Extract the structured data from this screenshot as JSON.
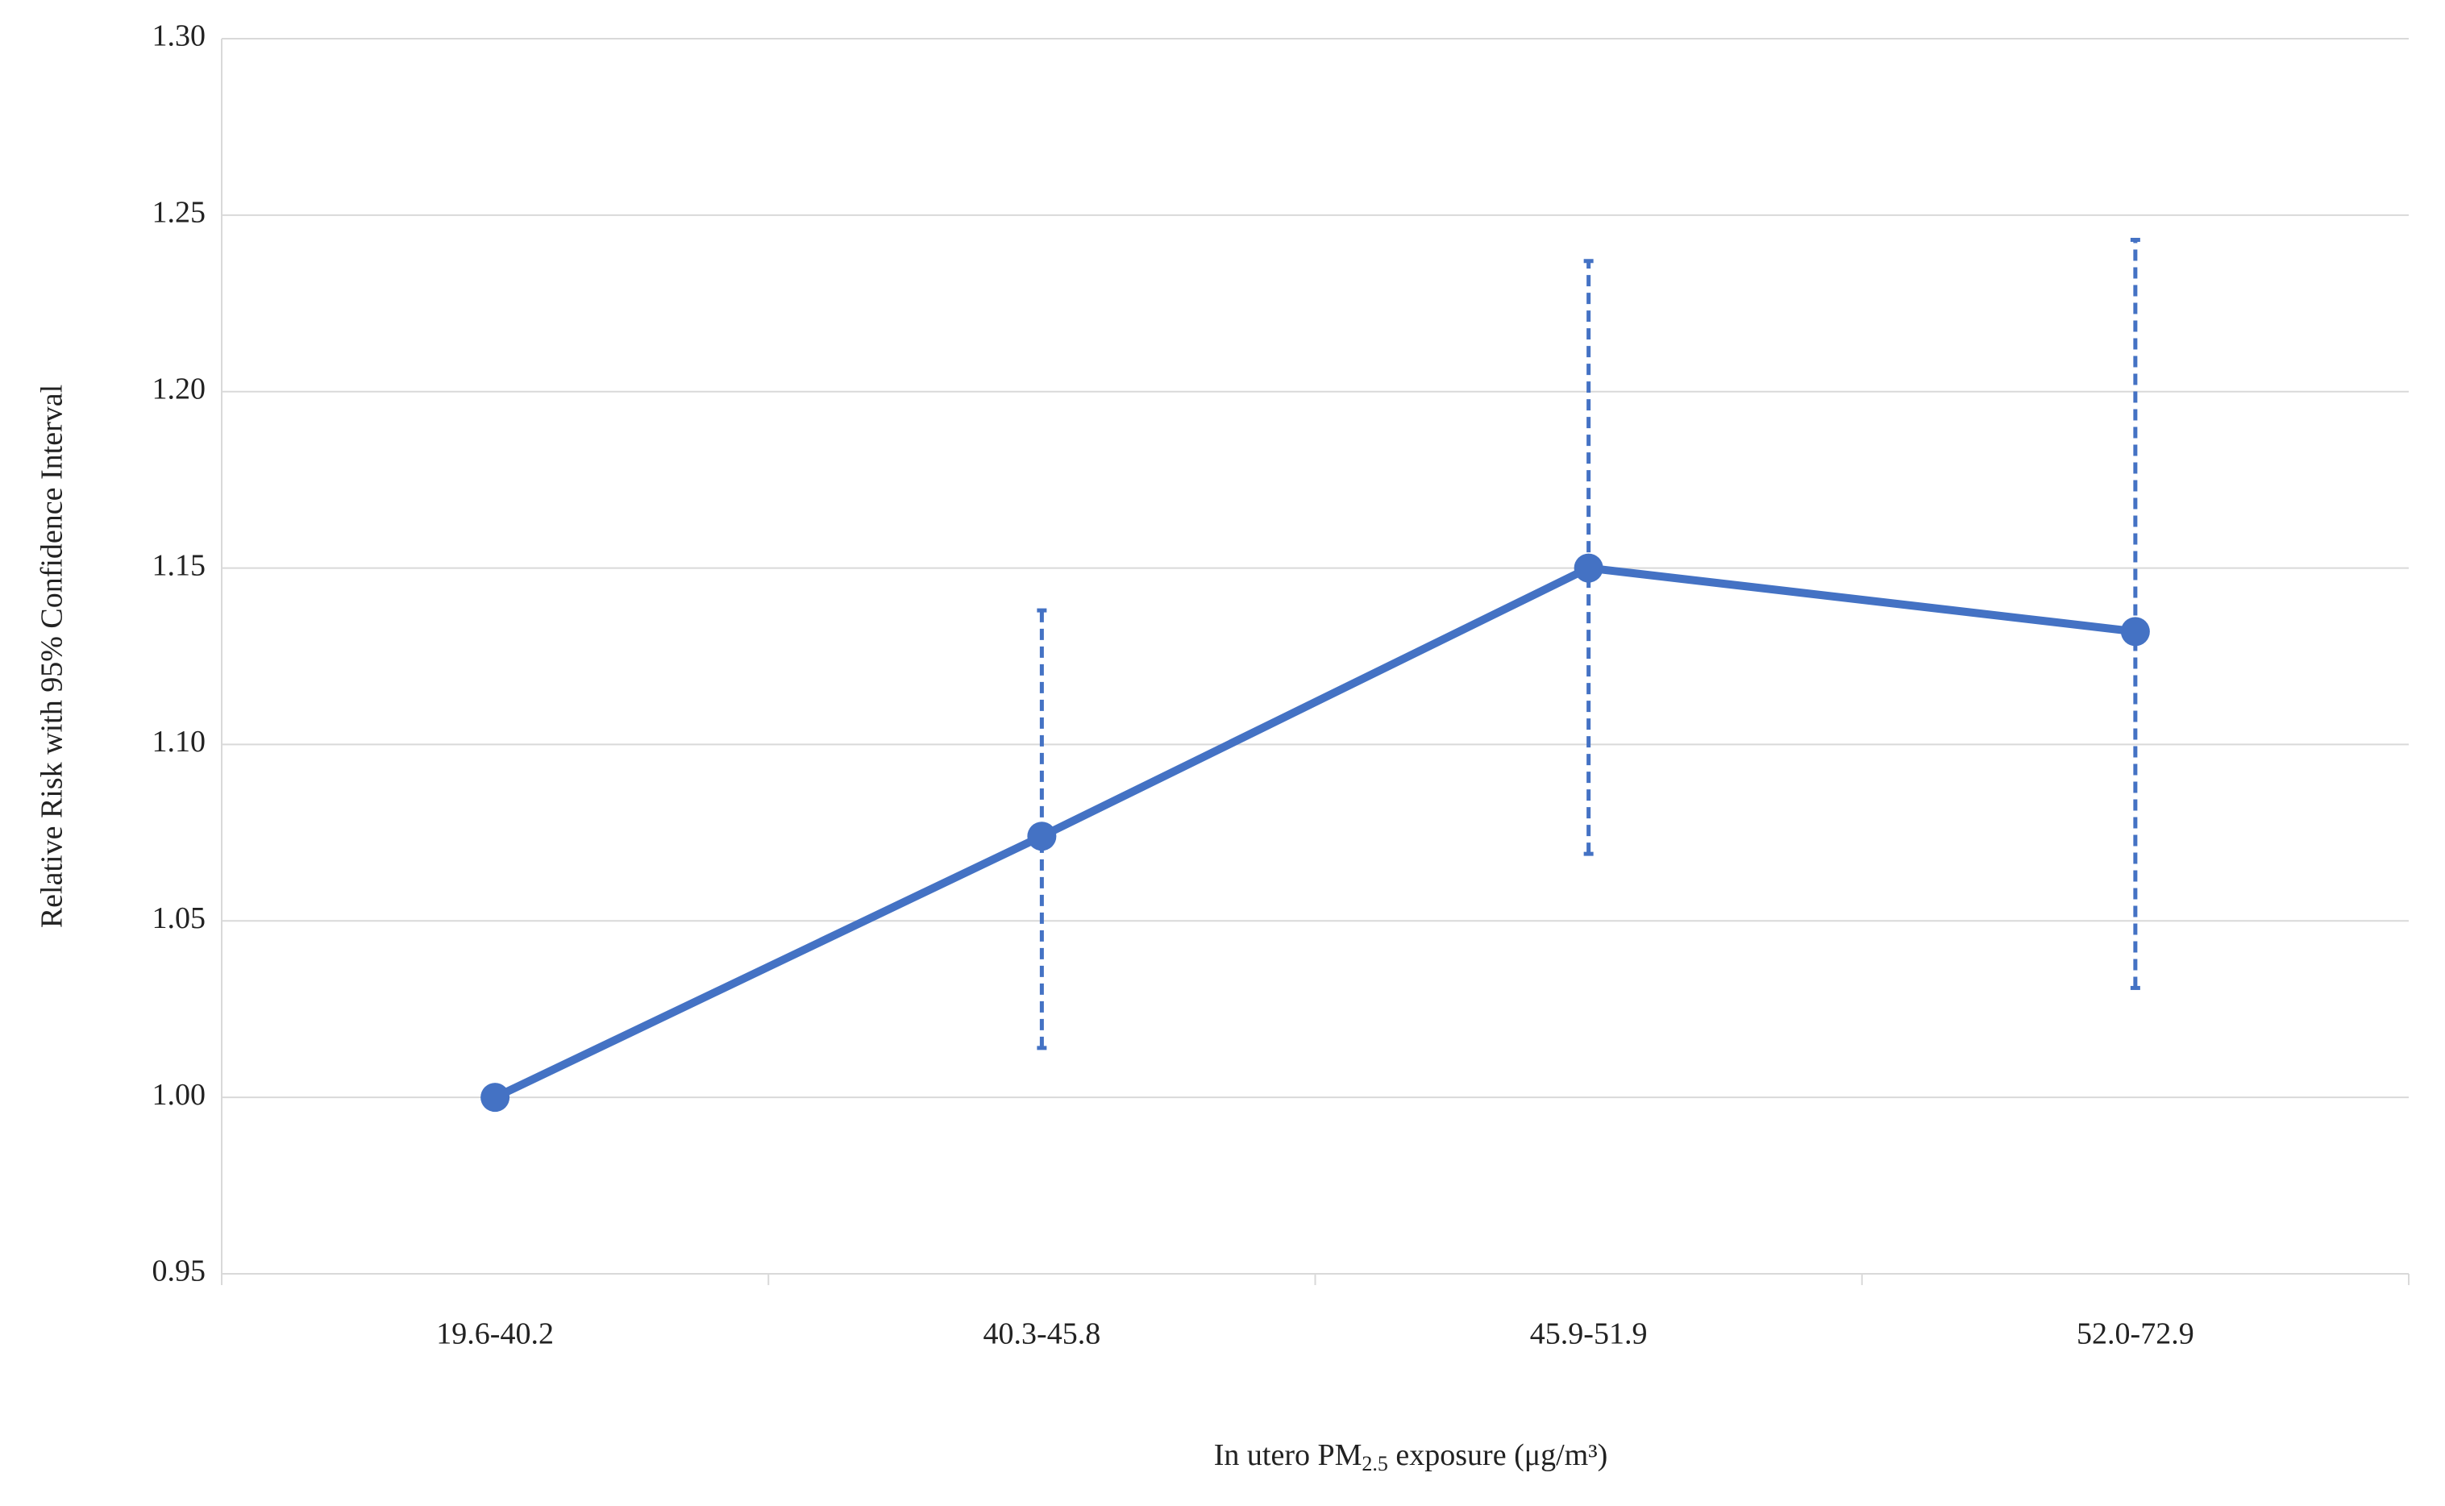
{
  "chart_data": {
    "type": "line",
    "y_label": "Relative Risk with 95% Confidence Interval",
    "x_label": {
      "text": "In utero PM",
      "subscript": "2.5",
      "suffix": " exposure (μg/m³)"
    },
    "categories": [
      "19.6-40.2",
      "40.3-45.8",
      "45.9-51.9",
      "52.0-72.9"
    ],
    "series": [
      {
        "color": "#4472c4",
        "values": [
          1.0,
          1.074,
          1.15,
          1.132
        ],
        "ci_low": [
          null,
          1.014,
          1.069,
          1.031
        ],
        "ci_high": [
          null,
          1.138,
          1.237,
          1.243
        ]
      }
    ],
    "ylim": [
      0.95,
      1.3
    ],
    "yticks": [
      0.95,
      {
        "value": 1.0,
        "label": "1.00"
      },
      1.05,
      {
        "value": 1.1,
        "label": "1.10"
      },
      1.15,
      {
        "value": 1.2,
        "label": "1.20"
      },
      1.25,
      {
        "value": 1.3,
        "label": "1.30"
      }
    ],
    "grid": true
  }
}
